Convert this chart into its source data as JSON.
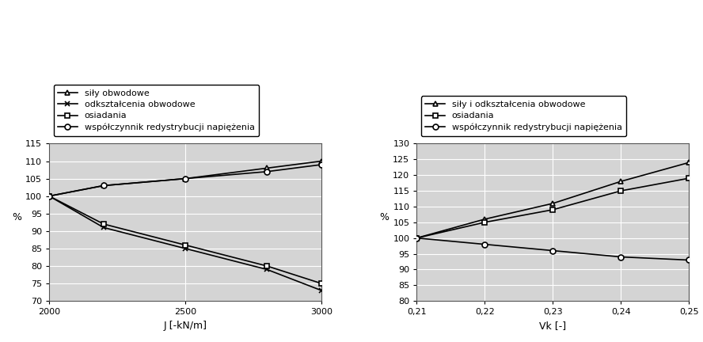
{
  "left": {
    "xlabel": "J [-kN/m]",
    "ylabel": "%",
    "ylim": [
      70,
      115
    ],
    "yticks": [
      70,
      75,
      80,
      85,
      90,
      95,
      100,
      105,
      110,
      115
    ],
    "xlim": [
      2000,
      3000
    ],
    "xticks": [
      2000,
      2500,
      3000
    ],
    "series": [
      {
        "label": "siły obwodowe",
        "x": [
          2000,
          2200,
          2500,
          2800,
          3000
        ],
        "y": [
          100,
          103,
          105,
          108,
          110
        ],
        "marker": "^",
        "color": "#000000",
        "markerfacecolor": "white"
      },
      {
        "label": "odkształcenia obwodowe",
        "x": [
          2000,
          2200,
          2500,
          2800,
          3000
        ],
        "y": [
          100,
          91,
          85,
          79,
          73
        ],
        "marker": "x",
        "color": "#000000",
        "markerfacecolor": "none"
      },
      {
        "label": "osiadania",
        "x": [
          2000,
          2200,
          2500,
          2800,
          3000
        ],
        "y": [
          100,
          92,
          86,
          80,
          75
        ],
        "marker": "s",
        "color": "#000000",
        "markerfacecolor": "white"
      },
      {
        "label": "współczynnik redystrybucji napiężenia",
        "x": [
          2000,
          2200,
          2500,
          2800,
          3000
        ],
        "y": [
          100,
          103,
          105,
          107,
          109
        ],
        "marker": "o",
        "color": "#000000",
        "markerfacecolor": "white"
      }
    ]
  },
  "right": {
    "xlabel": "Vk [-]",
    "ylabel": "%",
    "ylim": [
      80,
      130
    ],
    "yticks": [
      80,
      85,
      90,
      95,
      100,
      105,
      110,
      115,
      120,
      125,
      130
    ],
    "xlim": [
      0.21,
      0.25
    ],
    "xticks": [
      0.21,
      0.22,
      0.23,
      0.24,
      0.25
    ],
    "series": [
      {
        "label": "siły i odkształcenia obwodowe",
        "x": [
          0.21,
          0.22,
          0.23,
          0.24,
          0.25
        ],
        "y": [
          100,
          106,
          111,
          118,
          124
        ],
        "marker": "^",
        "color": "#000000",
        "markerfacecolor": "white"
      },
      {
        "label": "osiadania",
        "x": [
          0.21,
          0.22,
          0.23,
          0.24,
          0.25
        ],
        "y": [
          100,
          105,
          109,
          115,
          119
        ],
        "marker": "s",
        "color": "#000000",
        "markerfacecolor": "white"
      },
      {
        "label": "współczynnik redystrybucji napiężenia",
        "x": [
          0.21,
          0.22,
          0.23,
          0.24,
          0.25
        ],
        "y": [
          100,
          98,
          96,
          94,
          93
        ],
        "marker": "o",
        "color": "#000000",
        "markerfacecolor": "white"
      }
    ]
  },
  "bg_color": "#d4d4d4",
  "grid_color": "#ffffff",
  "font_size": 9,
  "legend_font_size": 8,
  "tick_font_size": 8,
  "line_width": 1.2,
  "marker_size": 5
}
